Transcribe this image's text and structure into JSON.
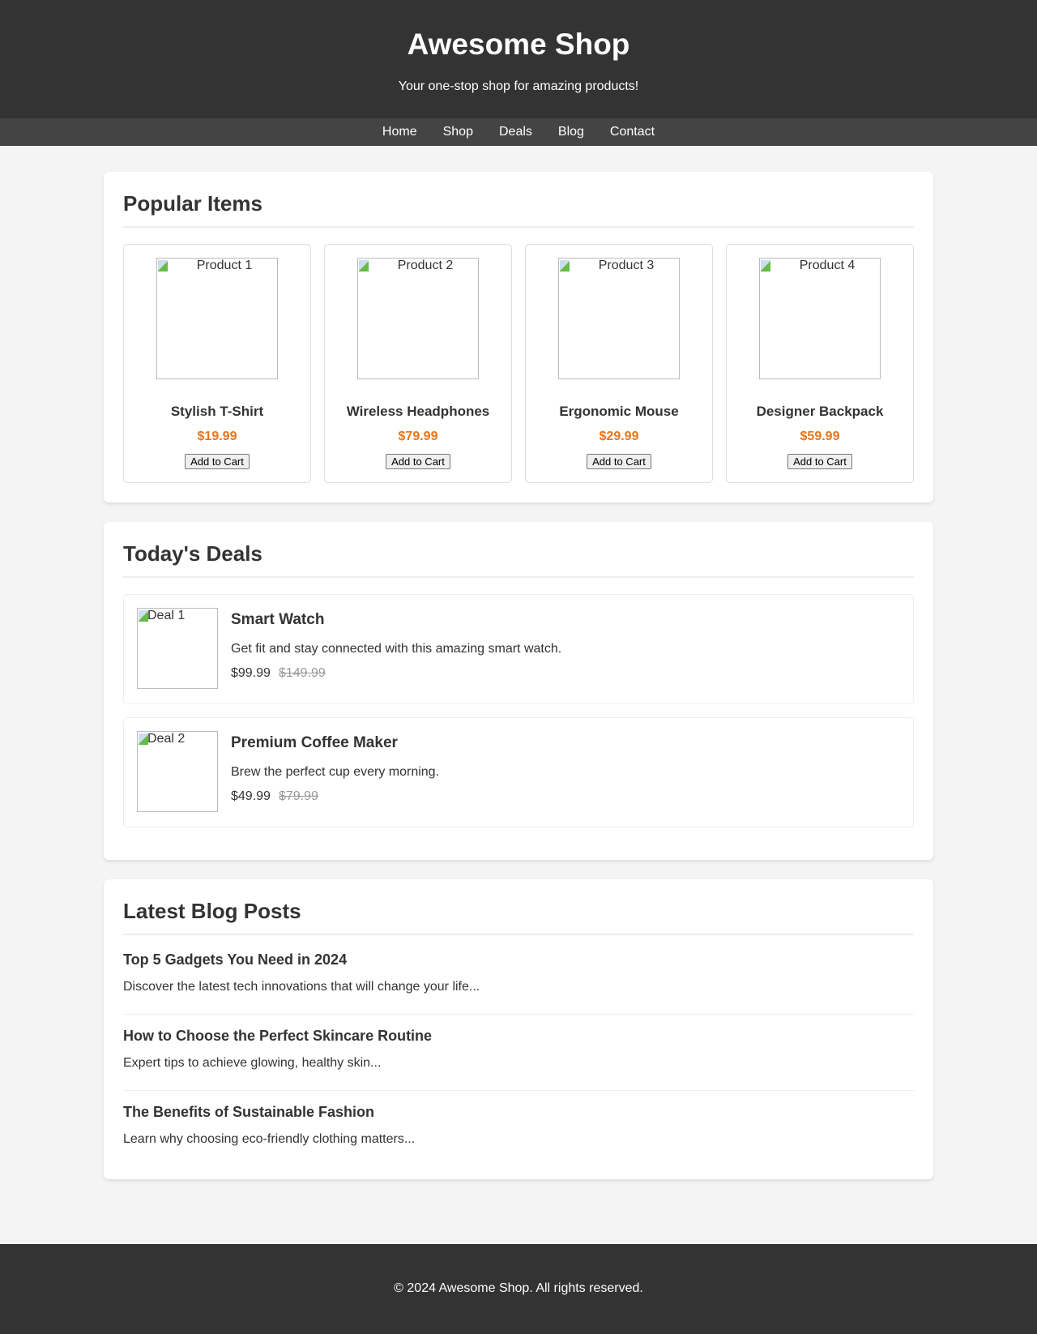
{
  "header": {
    "title": "Awesome Shop",
    "tagline": "Your one-stop shop for amazing products!"
  },
  "nav": [
    "Home",
    "Shop",
    "Deals",
    "Blog",
    "Contact"
  ],
  "popular": {
    "title": "Popular Items",
    "items": [
      {
        "alt": "Product 1",
        "name": "Stylish T-Shirt",
        "price": "$19.99",
        "button": "Add to Cart"
      },
      {
        "alt": "Product 2",
        "name": "Wireless Headphones",
        "price": "$79.99",
        "button": "Add to Cart"
      },
      {
        "alt": "Product 3",
        "name": "Ergonomic Mouse",
        "price": "$29.99",
        "button": "Add to Cart"
      },
      {
        "alt": "Product 4",
        "name": "Designer Backpack",
        "price": "$59.99",
        "button": "Add to Cart"
      }
    ]
  },
  "deals": {
    "title": "Today's Deals",
    "items": [
      {
        "alt": "Deal 1",
        "name": "Smart Watch",
        "desc": "Get fit and stay connected with this amazing smart watch.",
        "price": "$99.99",
        "old_price": "$149.99"
      },
      {
        "alt": "Deal 2",
        "name": "Premium Coffee Maker",
        "desc": "Brew the perfect cup every morning.",
        "price": "$49.99",
        "old_price": "$79.99"
      }
    ]
  },
  "blog": {
    "title": "Latest Blog Posts",
    "posts": [
      {
        "title": "Top 5 Gadgets You Need in 2024",
        "excerpt": "Discover the latest tech innovations that will change your life..."
      },
      {
        "title": "How to Choose the Perfect Skincare Routine",
        "excerpt": "Expert tips to achieve glowing, healthy skin..."
      },
      {
        "title": "The Benefits of Sustainable Fashion",
        "excerpt": "Learn why choosing eco-friendly clothing matters..."
      }
    ]
  },
  "footer": {
    "text": "© 2024 Awesome Shop. All rights reserved."
  },
  "colors": {
    "header": "#333333",
    "nav": "#444444",
    "price": "#e8751a"
  }
}
